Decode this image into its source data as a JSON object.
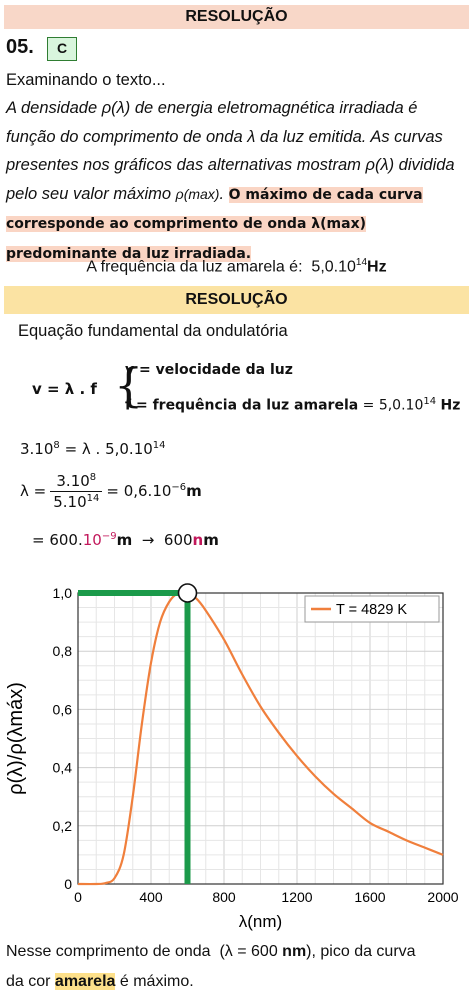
{
  "header": {
    "title": "RESOLUÇÃO"
  },
  "question": {
    "number": "05.",
    "answer": "C"
  },
  "intro": "Examinando o texto...",
  "italic_text": {
    "line1a": "A densidade ",
    "rho_lambda": "ρ(λ)",
    "line1b": " de energia eletromagnética irradiada é função do comprimento de onda ",
    "lambda": "λ",
    "line1c": " da luz emitida. As curvas presentes nos gráficos das alternativas mostram ",
    "line1d": " dividida pelo seu valor máximo ",
    "rho_max": "ρ(max)",
    "highlight_a": "O máximo de cada curva corresponde ao comprimento de onda ",
    "lambda_max": "λ(max)",
    "highlight_b": " predominante da luz irradiada."
  },
  "frequency": {
    "label": "A frequência da luz amarela é:",
    "value": "5,0.10",
    "exp": "14",
    "unit": "Hz"
  },
  "resolution_header": "RESOLUÇÃO",
  "equation_title": "Equação fundamental da ondulatória",
  "equations": {
    "main": "v = λ . f",
    "v_def": "v = velocidade da luz",
    "f_def": "f = frequência da luz amarela",
    "f_val": "= 5,0.10",
    "f_exp": "14",
    "f_unit": "Hz",
    "step1": "3.10",
    "step1_exp": "8",
    "step1_b": "= λ . 5,0.10",
    "step1_exp2": "14",
    "lambda_eq": "λ =",
    "frac_num": "3.10",
    "frac_num_exp": "8",
    "frac_den": "5.10",
    "frac_den_exp": "14",
    "lambda_res": "= 0,6.10",
    "lambda_res_exp": "−6",
    "lambda_res_unit": "m",
    "step3_a": "= 600.",
    "step3_pow": "10",
    "step3_pow_exp": "−9",
    "step3_unit": "m",
    "arrow": "→",
    "step3_res": "600",
    "step3_res_n": "n",
    "step3_res_m": "m"
  },
  "chart_data": {
    "type": "line",
    "series": [
      {
        "name": "T = 4829 K",
        "color": "#f07f3c",
        "x": [
          0,
          100,
          150,
          200,
          250,
          300,
          350,
          400,
          450,
          500,
          550,
          600,
          650,
          700,
          800,
          900,
          1000,
          1100,
          1200,
          1300,
          1400,
          1500,
          1600,
          1700,
          1800,
          1900,
          2000
        ],
        "y": [
          0.0,
          0.0,
          0.003,
          0.02,
          0.1,
          0.3,
          0.55,
          0.76,
          0.9,
          0.97,
          1.0,
          1.0,
          0.98,
          0.94,
          0.84,
          0.72,
          0.61,
          0.52,
          0.44,
          0.37,
          0.31,
          0.26,
          0.21,
          0.18,
          0.15,
          0.125,
          0.1
        ]
      }
    ],
    "xlabel": "λ(nm)",
    "ylabel": "ρ(λ)/ρ(λmáx)",
    "xlim": [
      0,
      2000
    ],
    "ylim": [
      0,
      1.0
    ],
    "xticks": [
      "0",
      "400",
      "800",
      "1200",
      "1600",
      "2000"
    ],
    "yticks": [
      "0",
      "0,2",
      "0,4",
      "0,6",
      "0,8",
      "1,0"
    ],
    "grid": true,
    "legend_position": "top-right",
    "annotation": {
      "peak_x": 600,
      "peak_y": 1.0,
      "marker_color": "#1b9a4a"
    }
  },
  "final_text": {
    "a": "Nesse comprimento de onda",
    "paren": "(λ = 600",
    "paren_unit": "nm",
    "paren_close": ")",
    "b": ", pico da curva",
    "c": "da cor ",
    "highlight": "amarela",
    "d": " é máximo."
  }
}
